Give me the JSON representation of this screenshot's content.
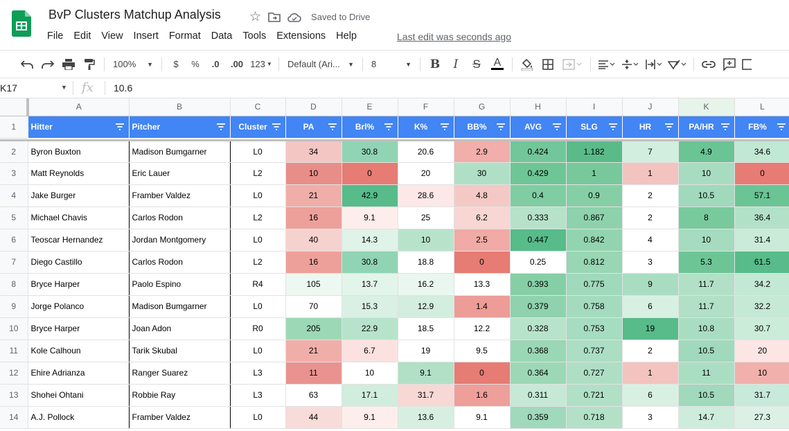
{
  "app": {
    "doc_title": "BvP Clusters Matchup Analysis",
    "saved_status": "Saved to Drive",
    "last_edit": "Last edit was seconds ago",
    "menu": [
      "File",
      "Edit",
      "View",
      "Insert",
      "Format",
      "Data",
      "Tools",
      "Extensions",
      "Help"
    ]
  },
  "toolbar": {
    "zoom": "100%",
    "currency": "$",
    "percent": "%",
    "dec_less": ".0",
    "dec_more": ".00",
    "format_more": "123",
    "font": "Default (Ari...",
    "font_size": "8"
  },
  "formula_bar": {
    "cell_ref": "K17",
    "fx": "fx",
    "value": "10.6"
  },
  "sheet": {
    "columns": [
      "A",
      "B",
      "C",
      "D",
      "E",
      "F",
      "G",
      "H",
      "I",
      "J",
      "K",
      "L"
    ],
    "headers": [
      "Hitter",
      "Pitcher",
      "Cluster",
      "PA",
      "Brl%",
      "K%",
      "BB%",
      "AVG",
      "SLG",
      "HR",
      "PA/HR",
      "FB%"
    ],
    "rows": [
      {
        "n": "2",
        "cells": [
          "Byron Buxton",
          "Madison Bumgarner",
          "L0",
          "34",
          "30.8",
          "20.6",
          "2.9",
          "0.424",
          "1.182",
          "7",
          "4.9",
          "34.6"
        ],
        "bg": [
          "#fff",
          "#fff",
          "#fff",
          "#f3c6c4",
          "#90d4b3",
          "#fff",
          "#f1aeaa",
          "#71c799",
          "#5abb89",
          "#d2eede",
          "#6ac494",
          "#c1e8d3"
        ]
      },
      {
        "n": "3",
        "cells": [
          "Matt Reynolds",
          "Eric Lauer",
          "L2",
          "10",
          "0",
          "20",
          "30",
          "0.429",
          "1",
          "1",
          "10",
          "0"
        ],
        "bg": [
          "#fff",
          "#fff",
          "#fff",
          "#e88e88",
          "#e67c73",
          "#fff",
          "#afe0c5",
          "#6ec696",
          "#77c99c",
          "#f3c3c0",
          "#a8dcc0",
          "#e67c73"
        ]
      },
      {
        "n": "4",
        "cells": [
          "Jake Burger",
          "Framber Valdez",
          "L0",
          "21",
          "42.9",
          "28.6",
          "4.8",
          "0.4",
          "0.9",
          "2",
          "10.5",
          "57.1"
        ],
        "bg": [
          "#fff",
          "#fff",
          "#fff",
          "#f0aea9",
          "#57bb8a",
          "#fce8e6",
          "#f4c9c5",
          "#80cda3",
          "#86cfa6",
          "#fff",
          "#a0d9bb",
          "#6ac494"
        ]
      },
      {
        "n": "5",
        "cells": [
          "Michael Chavis",
          "Carlos Rodon",
          "L2",
          "16",
          "9.1",
          "25",
          "6.2",
          "0.333",
          "0.867",
          "2",
          "8",
          "36.4"
        ],
        "bg": [
          "#fff",
          "#fff",
          "#fff",
          "#eda09a",
          "#fdeeec",
          "#fff",
          "#f7d6d3",
          "#b5e2c9",
          "#8ed2ac",
          "#fff",
          "#78ca9d",
          "#b3e1c8"
        ]
      },
      {
        "n": "6",
        "cells": [
          "Teoscar Hernandez",
          "Jordan Montgomery",
          "L0",
          "40",
          "14.3",
          "10",
          "2.5",
          "0.447",
          "0.842",
          "4",
          "10",
          "31.4"
        ],
        "bg": [
          "#fff",
          "#fff",
          "#fff",
          "#f6d2cf",
          "#dff3e8",
          "#b8e3cb",
          "#f1aaa5",
          "#57bb8a",
          "#92d4b0",
          "#fff",
          "#a5dbbe",
          "#c9ebd8"
        ]
      },
      {
        "n": "7",
        "cells": [
          "Diego Castillo",
          "Carlos Rodon",
          "L2",
          "16",
          "30.8",
          "18.8",
          "0",
          "0.25",
          "0.812",
          "3",
          "5.3",
          "61.5"
        ],
        "bg": [
          "#fff",
          "#fff",
          "#fff",
          "#eda09a",
          "#90d4b3",
          "#fff",
          "#e67c73",
          "#fff",
          "#98d6b4",
          "#fff",
          "#6dc596",
          "#57bb8a"
        ]
      },
      {
        "n": "8",
        "cells": [
          "Bryce Harper",
          "Paolo Espino",
          "R4",
          "105",
          "13.7",
          "16.2",
          "13.3",
          "0.393",
          "0.775",
          "9",
          "11.7",
          "34.2"
        ],
        "bg": [
          "#fff",
          "#fff",
          "#fff",
          "#ecf8f1",
          "#e3f4ea",
          "#eaf7f0",
          "#fff",
          "#86cfa6",
          "#a0d9bb",
          "#a9ddc1",
          "#b1e0c6",
          "#c3e8d4"
        ]
      },
      {
        "n": "9",
        "cells": [
          "Jorge Polanco",
          "Madison Bumgarner",
          "L0",
          "70",
          "15.3",
          "12.9",
          "1.4",
          "0.379",
          "0.758",
          "6",
          "11.7",
          "32.2"
        ],
        "bg": [
          "#fff",
          "#fff",
          "#fff",
          "#fff",
          "#daf0e4",
          "#d3eede",
          "#ed9c97",
          "#8fd2ad",
          "#a4dbbe",
          "#d8f0e2",
          "#b1e0c6",
          "#c6e9d6"
        ]
      },
      {
        "n": "10",
        "cells": [
          "Bryce Harper",
          "Joan Adon",
          "R0",
          "205",
          "22.9",
          "18.5",
          "12.2",
          "0.328",
          "0.753",
          "19",
          "10.8",
          "30.7"
        ],
        "bg": [
          "#fff",
          "#fff",
          "#fff",
          "#9cd8b6",
          "#b7e3ca",
          "#fff",
          "#fff",
          "#b8e3cb",
          "#a6dcbf",
          "#57bb8a",
          "#a9ddc1",
          "#ccecda"
        ]
      },
      {
        "n": "11",
        "cells": [
          "Kole Calhoun",
          "Tarik Skubal",
          "L0",
          "21",
          "6.7",
          "19",
          "9.5",
          "0.368",
          "0.737",
          "2",
          "10.5",
          "20"
        ],
        "bg": [
          "#fff",
          "#fff",
          "#fff",
          "#f0aea9",
          "#fbe2e0",
          "#fff",
          "#fff",
          "#9ad7b5",
          "#abdec3",
          "#fff",
          "#a0d9bb",
          "#fce5e3"
        ]
      },
      {
        "n": "12",
        "cells": [
          "Ehire Adrianza",
          "Ranger Suarez",
          "L3",
          "11",
          "10",
          "9.1",
          "0",
          "0.364",
          "0.727",
          "1",
          "11",
          "10"
        ],
        "bg": [
          "#fff",
          "#fff",
          "#fff",
          "#e99390",
          "#fff",
          "#b1e0c6",
          "#e67c73",
          "#9cd8b6",
          "#aedfc4",
          "#f3c3c0",
          "#aadec2",
          "#f1b0ab"
        ]
      },
      {
        "n": "13",
        "cells": [
          "Shohei Ohtani",
          "Robbie Ray",
          "L3",
          "63",
          "17.1",
          "31.7",
          "1.6",
          "0.311",
          "0.721",
          "6",
          "10.5",
          "31.7"
        ],
        "bg": [
          "#fff",
          "#fff",
          "#fff",
          "#fff",
          "#d0eddd",
          "#f8d8d5",
          "#ee9f9a",
          "#c5e9d5",
          "#b0e0c6",
          "#d8f0e2",
          "#a0d9bb",
          "#c8eadb"
        ]
      },
      {
        "n": "14",
        "cells": [
          "A.J. Pollock",
          "Framber Valdez",
          "L0",
          "44",
          "9.1",
          "13.6",
          "9.1",
          "0.359",
          "0.718",
          "3",
          "14.7",
          "27.3"
        ],
        "bg": [
          "#fff",
          "#fff",
          "#fff",
          "#f8dcd9",
          "#fdeeec",
          "#d7efe1",
          "#fff",
          "#a0d9bb",
          "#b3e1c8",
          "#fff",
          "#cdecdb",
          "#dbf1e5"
        ]
      }
    ]
  }
}
